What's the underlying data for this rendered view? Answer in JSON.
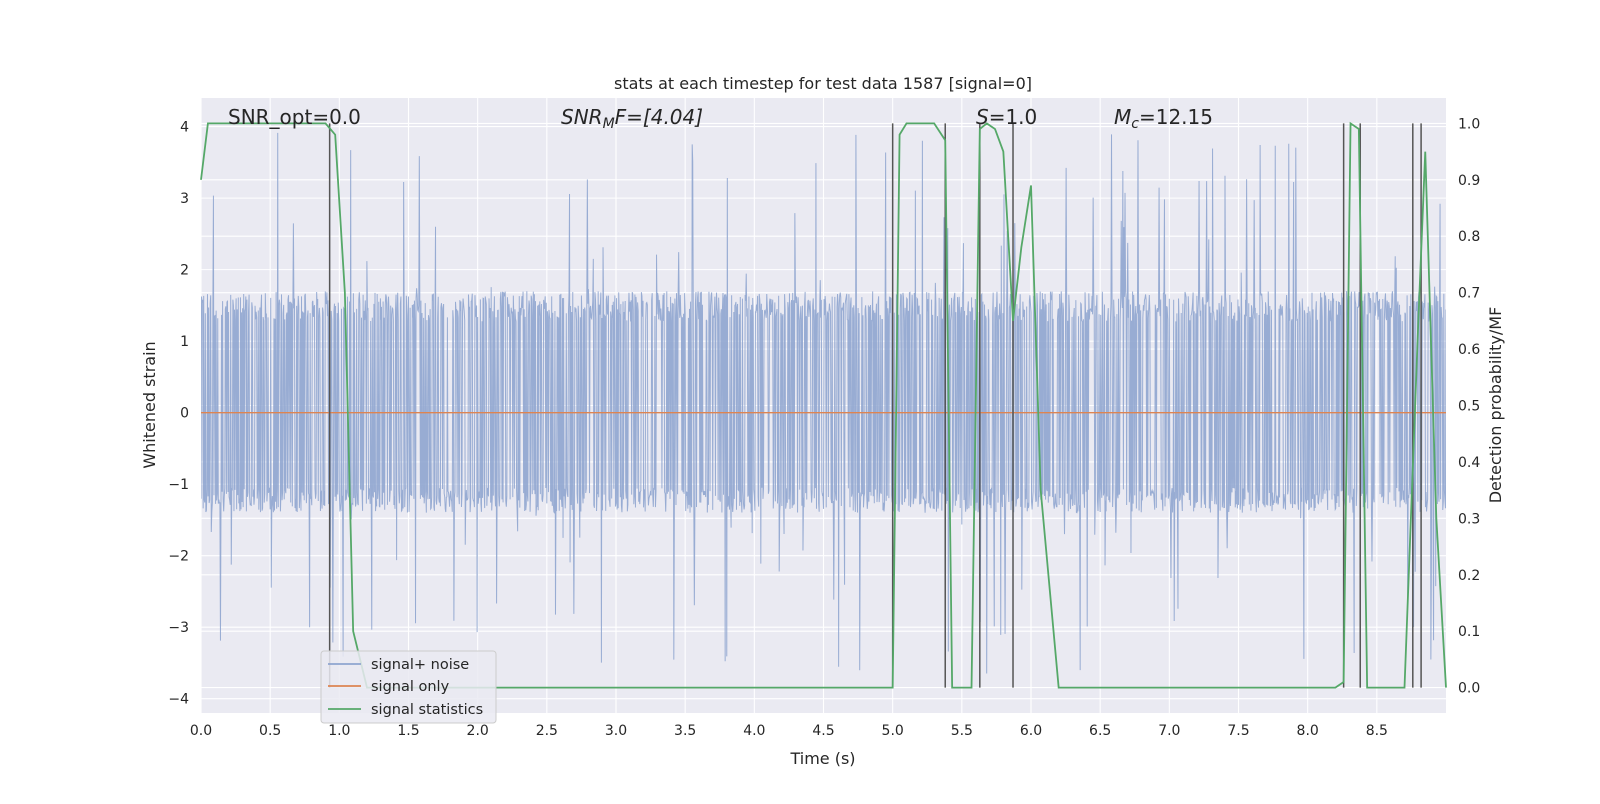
{
  "chart_data": {
    "type": "line",
    "title": "stats at each timestep for test data 1587 [signal=0]",
    "xlabel": "Time (s)",
    "ylabel_left": "Whitened strain",
    "ylabel_right": "Detection probability/MF",
    "xlim": [
      0.0,
      9.0
    ],
    "ylim_left": [
      -4.2,
      4.4
    ],
    "ylim_right": [
      -0.045,
      1.045
    ],
    "x_ticks": [
      0.0,
      0.5,
      1.0,
      1.5,
      2.0,
      2.5,
      3.0,
      3.5,
      4.0,
      4.5,
      5.0,
      5.5,
      6.0,
      6.5,
      7.0,
      7.5,
      8.0,
      8.5
    ],
    "x_tick_labels": [
      "0.0",
      "0.5",
      "1.0",
      "1.5",
      "2.0",
      "2.5",
      "3.0",
      "3.5",
      "4.0",
      "4.5",
      "5.0",
      "5.5",
      "6.0",
      "6.5",
      "7.0",
      "7.5",
      "8.0",
      "8.5"
    ],
    "y_ticks_left": [
      -4,
      -3,
      -2,
      -1,
      0,
      1,
      2,
      3,
      4
    ],
    "y_tick_labels_left": [
      "−4",
      "−3",
      "−2",
      "−1",
      "0",
      "1",
      "2",
      "3",
      "4"
    ],
    "y_ticks_right": [
      0.0,
      0.1,
      0.2,
      0.3,
      0.4,
      0.5,
      0.6,
      0.7,
      0.8,
      0.9,
      1.0
    ],
    "y_tick_labels_right": [
      "0.0",
      "0.1",
      "0.2",
      "0.3",
      "0.4",
      "0.5",
      "0.6",
      "0.7",
      "0.8",
      "0.9",
      "1.0"
    ],
    "grid": true,
    "legend_position": "lower-left",
    "series": [
      {
        "name": "signal+ noise",
        "axis": "left",
        "color": "#8fa5cf",
        "kind": "noise",
        "sample_rate_hz": 256,
        "envelope_upper": 1.7,
        "envelope_lower": -1.4,
        "peak_max": 3.95,
        "peak_min": -3.65
      },
      {
        "name": "signal only",
        "axis": "left",
        "color": "#dd8452",
        "x": [
          0.0,
          9.0
        ],
        "y": [
          0.0,
          0.0
        ]
      },
      {
        "name": "signal statistics",
        "axis": "right",
        "color": "#55a868",
        "x": [
          0.0,
          0.05,
          0.12,
          0.2,
          0.3,
          0.4,
          0.5,
          0.6,
          0.7,
          0.8,
          0.9,
          0.97,
          1.04,
          1.1,
          1.2,
          2.0,
          3.0,
          4.0,
          4.94,
          5.0,
          5.05,
          5.1,
          5.2,
          5.3,
          5.38,
          5.43,
          5.5,
          5.57,
          5.63,
          5.68,
          5.74,
          5.8,
          5.87,
          5.93,
          6.0,
          6.07,
          6.2,
          7.0,
          8.0,
          8.2,
          8.26,
          8.31,
          8.37,
          8.43,
          8.5,
          8.7,
          8.8,
          8.85,
          8.93,
          9.0
        ],
        "y": [
          0.9,
          1.0,
          1.0,
          1.0,
          1.0,
          1.0,
          1.0,
          1.0,
          1.0,
          1.0,
          1.0,
          0.98,
          0.7,
          0.1,
          0.0,
          0.0,
          0.0,
          0.0,
          0.0,
          0.0,
          0.98,
          1.0,
          1.0,
          1.0,
          0.97,
          0.0,
          0.0,
          0.0,
          0.99,
          1.0,
          0.99,
          0.95,
          0.65,
          0.78,
          0.89,
          0.35,
          0.0,
          0.0,
          0.0,
          0.0,
          0.01,
          1.0,
          0.99,
          0.0,
          0.0,
          0.0,
          0.65,
          0.95,
          0.3,
          0.0
        ]
      }
    ],
    "vlines": [
      0.93,
      5.0,
      5.38,
      5.63,
      5.87,
      8.26,
      8.38,
      8.76,
      8.82
    ],
    "vline_color": "#555555",
    "annotations": [
      {
        "id": "snr-opt",
        "text": "SNR_opt=0.0"
      },
      {
        "id": "snr-mf",
        "prefix": "SNR",
        "sub": "M",
        "suffix": "F=[4.04]"
      },
      {
        "id": "s-stat",
        "prefix": "S",
        "suffix": "=1.0"
      },
      {
        "id": "mc",
        "prefix": "M",
        "sub": "c",
        "suffix": "=12.15"
      }
    ]
  }
}
